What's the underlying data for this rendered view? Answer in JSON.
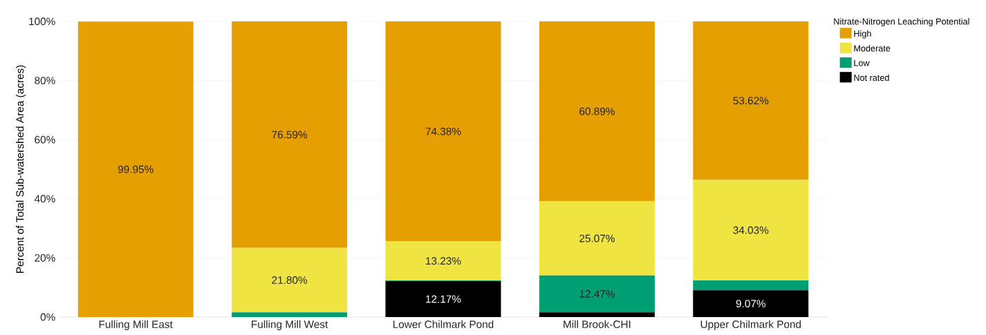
{
  "chart_data": {
    "type": "bar",
    "stacked": true,
    "ylabel": "Percent of Total Sub-watershed Area (acres)",
    "legend_title": "Nitrate-Nitrogen Leaching Potential",
    "legend": "top right",
    "grid": "y",
    "categories": [
      "Fulling Mill East",
      "Fulling Mill West",
      "Lower Chilmark Pond",
      "Mill Brook-CHI",
      "Upper Chilmark Pond"
    ],
    "ylim": [
      0,
      100
    ],
    "yticks": [
      {
        "value": 0,
        "label": "0%"
      },
      {
        "value": 20,
        "label": "20%"
      },
      {
        "value": 40,
        "label": "40%"
      },
      {
        "value": 60,
        "label": "60%"
      },
      {
        "value": 80,
        "label": "80%"
      },
      {
        "value": 100,
        "label": "100%"
      }
    ],
    "series": [
      {
        "name": "Not rated",
        "color": "#000000",
        "values": [
          0,
          0,
          12.17,
          1.6,
          9.07
        ],
        "value_labels": [
          null,
          null,
          "12.17%",
          null,
          "9.07%"
        ]
      },
      {
        "name": "Low",
        "color": "#009e73",
        "values": [
          0,
          1.6,
          0.2,
          12.47,
          3.3
        ],
        "value_labels": [
          null,
          null,
          null,
          "12.47%",
          null
        ]
      },
      {
        "name": "Moderate",
        "color": "#f0e442",
        "values": [
          0,
          21.8,
          13.23,
          25.07,
          34.03
        ],
        "value_labels": [
          null,
          "21.80%",
          "13.23%",
          "25.07%",
          "34.03%"
        ]
      },
      {
        "name": "High",
        "color": "#e69f00",
        "values": [
          99.95,
          76.59,
          74.38,
          60.89,
          53.62
        ],
        "value_labels": [
          "99.95%",
          "76.59%",
          "74.38%",
          "60.89%",
          "53.62%"
        ]
      }
    ]
  }
}
